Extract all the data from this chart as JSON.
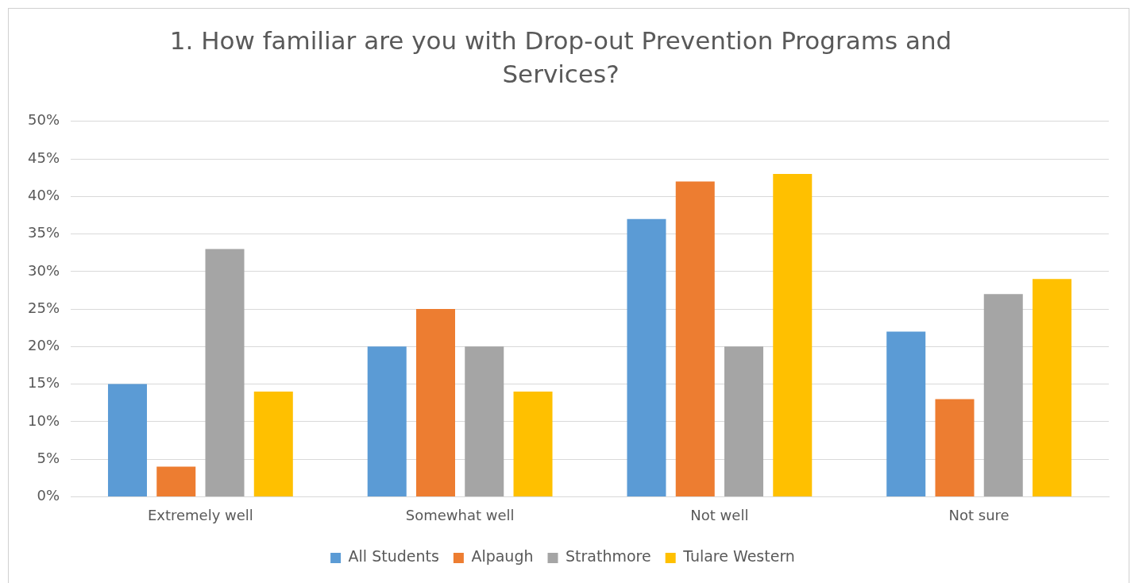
{
  "chart_data": {
    "type": "bar",
    "title": "1. How familiar are you with Drop-out Prevention Programs and Services?",
    "categories": [
      "Extremely well",
      "Somewhat well",
      "Not well",
      "Not sure"
    ],
    "series": [
      {
        "name": "All Students",
        "color": "#5b9bd5",
        "values": [
          15,
          20,
          37,
          22
        ]
      },
      {
        "name": "Alpaugh",
        "color": "#ed7d31",
        "values": [
          4,
          25,
          42,
          13
        ]
      },
      {
        "name": "Strathmore",
        "color": "#a5a5a5",
        "values": [
          33,
          20,
          20,
          27
        ]
      },
      {
        "name": "Tulare Western",
        "color": "#ffc000",
        "values": [
          14,
          14,
          43,
          29
        ]
      }
    ],
    "ylim": [
      0,
      50
    ],
    "yticks": [
      {
        "value": 0,
        "label": "0%"
      },
      {
        "value": 5,
        "label": "5%"
      },
      {
        "value": 10,
        "label": "10%"
      },
      {
        "value": 15,
        "label": "15%"
      },
      {
        "value": 20,
        "label": "20%"
      },
      {
        "value": 25,
        "label": "25%"
      },
      {
        "value": 30,
        "label": "30%"
      },
      {
        "value": 35,
        "label": "35%"
      },
      {
        "value": 40,
        "label": "40%"
      },
      {
        "value": 45,
        "label": "45%"
      },
      {
        "value": 50,
        "label": "50%"
      }
    ],
    "grid": "y",
    "legend": "bottom"
  }
}
